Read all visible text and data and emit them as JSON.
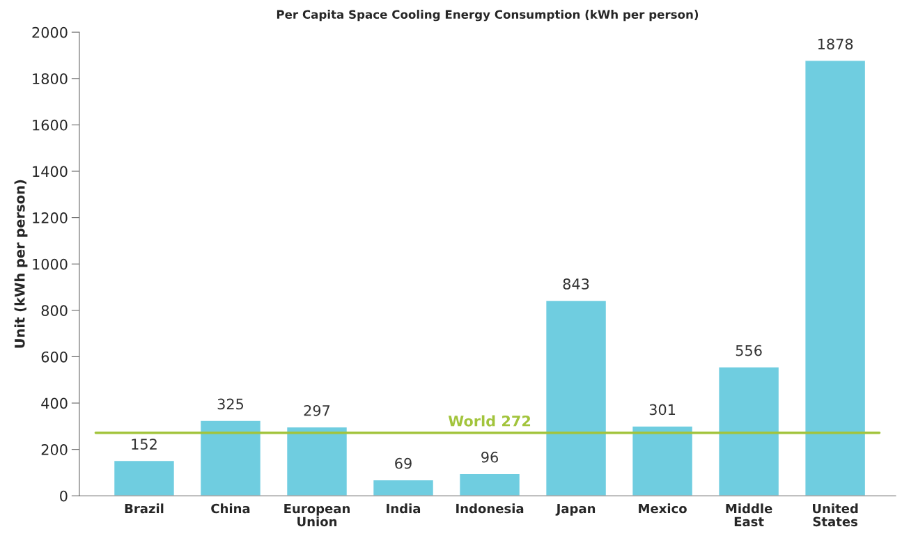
{
  "chart_data": {
    "type": "bar",
    "title": "Per Capita Space Cooling Energy Consumption (kWh per person)",
    "ylabel": "Unit (kWh per person)",
    "categories": [
      "Brazil",
      "China",
      "European\nUnion",
      "India",
      "Indonesia",
      "Japan",
      "Mexico",
      "Middle\nEast",
      "United\nStates"
    ],
    "values": [
      152,
      325,
      297,
      69,
      96,
      843,
      301,
      556,
      1878
    ],
    "color": "#6fcde0",
    "ylim": [
      0,
      2000
    ],
    "yticks": [
      0,
      200,
      400,
      600,
      800,
      1000,
      1200,
      1400,
      1600,
      1800,
      2000
    ],
    "grid": false,
    "data_labels": true,
    "ref_lines": [
      {
        "axis": "y",
        "value": 272,
        "label": "World 272",
        "color": "#a2c43c"
      }
    ]
  }
}
